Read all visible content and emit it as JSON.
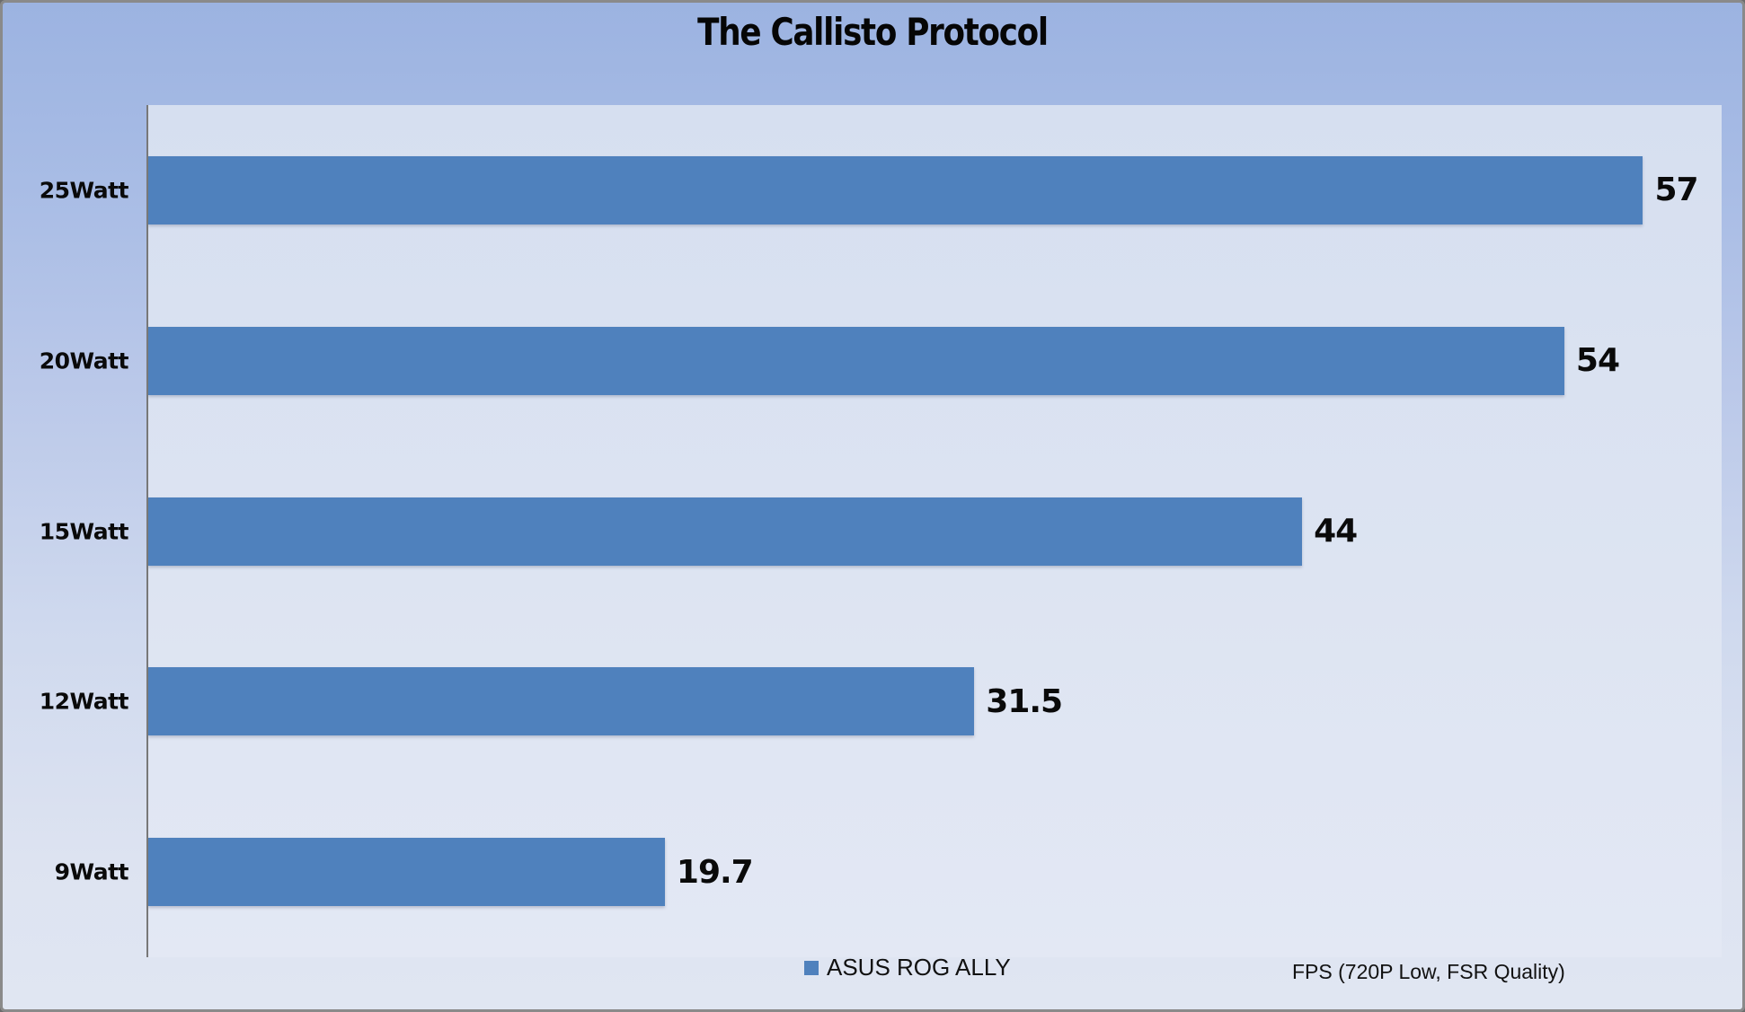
{
  "chart_data": {
    "type": "bar",
    "orientation": "horizontal",
    "title": "The Callisto Protocol",
    "categories": [
      "25Watt",
      "20Watt",
      "15Watt",
      "12Watt",
      "9Watt"
    ],
    "series": [
      {
        "name": "ASUS ROG ALLY",
        "values": [
          57,
          54,
          44,
          31.5,
          19.7
        ]
      }
    ],
    "data_labels": [
      "57",
      "54",
      "44",
      "31.5",
      "19.7"
    ],
    "xlim": [
      0,
      60
    ],
    "grid": false,
    "legend_position": "bottom-center",
    "footnote": "FPS (720P Low, FSR Quality)",
    "colors": {
      "bar": "#4F81BD",
      "background_top": "#9CB3E1",
      "background_bottom": "#E0E6F2",
      "plot_area_top": "#D6DFF0",
      "plot_area_bottom": "#E3E8F4",
      "axis_line": "#787878",
      "text": "#0A0A0A"
    }
  }
}
